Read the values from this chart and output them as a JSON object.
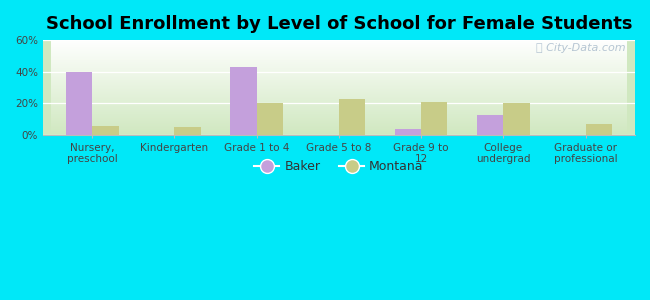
{
  "title": "School Enrollment by Level of School for Female Students",
  "categories": [
    "Nursery,\npreschool",
    "Kindergarten",
    "Grade 1 to 4",
    "Grade 5 to 8",
    "Grade 9 to\n12",
    "College\nundergrad",
    "Graduate or\nprofessional"
  ],
  "baker_values": [
    40,
    0,
    43,
    0,
    4,
    13,
    0
  ],
  "montana_values": [
    6,
    5,
    20,
    23,
    21,
    20,
    7
  ],
  "baker_color": "#c4a0dc",
  "montana_color": "#c8cc88",
  "background_outer": "#00e8f8",
  "ylim": [
    0,
    60
  ],
  "yticks": [
    0,
    20,
    40,
    60
  ],
  "ytick_labels": [
    "0%",
    "20%",
    "40%",
    "60%"
  ],
  "bar_width": 0.32,
  "title_fontsize": 13,
  "tick_fontsize": 7.5,
  "legend_fontsize": 9,
  "watermark": "City-Data.com",
  "grad_top": "#ffffff",
  "grad_bottom": "#d0e8c0"
}
